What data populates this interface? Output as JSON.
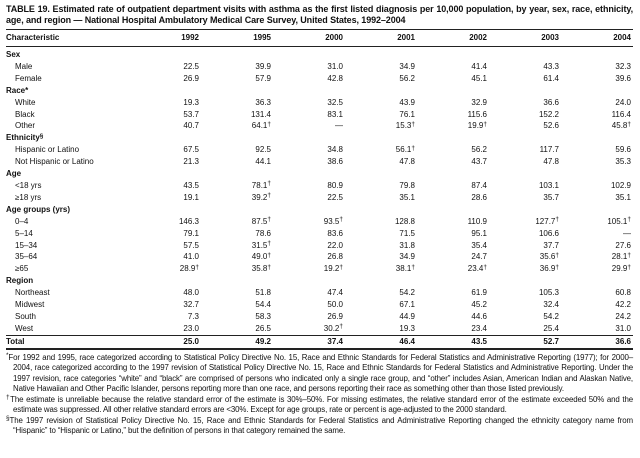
{
  "table": {
    "title": "TABLE 19. Estimated rate of outpatient department visits with asthma as the first listed diagnosis per 10,000 population, by year, sex, race, ethnicity, age, and region — National Hospital Ambulatory Medical Care Survey, United States, 1992–2004",
    "columns": [
      "Characteristic",
      "1992",
      "1995",
      "2000",
      "2001",
      "2002",
      "2003",
      "2004"
    ],
    "rows": [
      {
        "label": "Sex",
        "type": "section",
        "values": []
      },
      {
        "label": "Male",
        "type": "data",
        "values": [
          "22.5",
          "39.9",
          "31.0",
          "34.9",
          "41.4",
          "43.3",
          "32.3"
        ]
      },
      {
        "label": "Female",
        "type": "data",
        "values": [
          "26.9",
          "57.9",
          "42.8",
          "56.2",
          "45.1",
          "61.4",
          "39.6"
        ]
      },
      {
        "label": "Race*",
        "type": "section",
        "values": []
      },
      {
        "label": "White",
        "type": "data",
        "values": [
          "19.3",
          "36.3",
          "32.5",
          "43.9",
          "32.9",
          "36.6",
          "24.0"
        ]
      },
      {
        "label": "Black",
        "type": "data",
        "values": [
          "53.7",
          "131.4",
          "83.1",
          "76.1",
          "115.6",
          "152.2",
          "116.4"
        ]
      },
      {
        "label": "Other",
        "type": "data",
        "values": [
          "40.7",
          "64.1†",
          "—",
          "15.3†",
          "19.9†",
          "52.6",
          "45.8†"
        ]
      },
      {
        "label": "Ethnicity",
        "sup": "§",
        "type": "section",
        "values": []
      },
      {
        "label": "Hispanic or Latino",
        "type": "data",
        "values": [
          "67.5",
          "92.5",
          "34.8",
          "56.1†",
          "56.2",
          "117.7",
          "59.6"
        ]
      },
      {
        "label": "Not Hispanic or Latino",
        "type": "data",
        "values": [
          "21.3",
          "44.1",
          "38.6",
          "47.8",
          "43.7",
          "47.8",
          "35.3"
        ]
      },
      {
        "label": "Age",
        "type": "section",
        "values": []
      },
      {
        "label": "<18 yrs",
        "type": "data",
        "values": [
          "43.5",
          "78.1†",
          "80.9",
          "79.8",
          "87.4",
          "103.1",
          "102.9"
        ]
      },
      {
        "label": "≥18 yrs",
        "type": "data",
        "values": [
          "19.1",
          "39.2†",
          "22.5",
          "35.1",
          "28.6",
          "35.7",
          "35.1"
        ]
      },
      {
        "label": "Age groups (yrs)",
        "type": "section",
        "values": []
      },
      {
        "label": "0–4",
        "type": "data",
        "values": [
          "146.3",
          "87.5†",
          "93.5†",
          "128.8",
          "110.9",
          "127.7†",
          "105.1†"
        ]
      },
      {
        "label": "5–14",
        "type": "data",
        "values": [
          "79.1",
          "78.6",
          "83.6",
          "71.5",
          "95.1",
          "106.6",
          "—"
        ]
      },
      {
        "label": "15–34",
        "type": "data",
        "values": [
          "57.5",
          "31.5†",
          "22.0",
          "31.8",
          "35.4",
          "37.7",
          "27.6"
        ]
      },
      {
        "label": "35–64",
        "type": "data",
        "values": [
          "41.0",
          "49.0†",
          "26.8",
          "34.9",
          "24.7",
          "35.6†",
          "28.1†"
        ]
      },
      {
        "label": "≥65",
        "type": "data",
        "values": [
          "28.9†",
          "35.8†",
          "19.2†",
          "38.1†",
          "23.4†",
          "36.9†",
          "29.9†"
        ]
      },
      {
        "label": "Region",
        "type": "section",
        "values": []
      },
      {
        "label": "Northeast",
        "type": "data",
        "values": [
          "48.0",
          "51.8",
          "47.4",
          "54.2",
          "61.9",
          "105.3",
          "60.8"
        ]
      },
      {
        "label": "Midwest",
        "type": "data",
        "values": [
          "32.7",
          "54.4",
          "50.0",
          "67.1",
          "45.2",
          "32.4",
          "42.2"
        ]
      },
      {
        "label": "South",
        "type": "data",
        "values": [
          "7.3",
          "58.3",
          "26.9",
          "44.9",
          "44.6",
          "54.2",
          "24.2"
        ]
      },
      {
        "label": "West",
        "type": "data",
        "values": [
          "23.0",
          "26.5",
          "30.2†",
          "19.3",
          "23.4",
          "25.4",
          "31.0"
        ]
      },
      {
        "label": "Total",
        "type": "total",
        "values": [
          "25.0",
          "49.2",
          "37.4",
          "46.4",
          "43.5",
          "52.7",
          "36.6"
        ]
      }
    ],
    "footnotes": [
      {
        "sup": "*",
        "text": "For 1992 and 1995, race categorized according to Statistical Policy Directive No. 15, Race and Ethnic Standards for Federal Statistics and Administrative Reporting (1977); for 2000–2004, race categorized according to the 1997 revision of Statistical Policy Directive No. 15, Race and Ethnic Standards for Federal Statistics and Administrative Reporting. Under the 1997 revision, race categories “white” and “black” are comprised of persons who indicated only a single race group, and “other” includes Asian, American Indian and Alaskan Native, Native Hawaiian and Other Pacific Islander, persons reporting more than one race, and persons reporting their race as something other than those listed previously."
      },
      {
        "sup": "†",
        "text": "The estimate is unreliable because the relative standard error of the estimate is 30%–50%. For missing estimates, the relative standard error of the estimate exceeded 50% and the estimate was suppressed. All other relative standard errors are <30%. Except for age groups, rate or percent is age-adjusted to the 2000 standard."
      },
      {
        "sup": "§",
        "text": "The 1997 revision of Statistical Policy Directive No. 15, Race and Ethnic Standards for Federal Statistics and Administrative Reporting changed the ethnicity category name from “Hispanic” to “Hispanic or Latino,” but the definition of persons in that category remained the same."
      }
    ]
  }
}
